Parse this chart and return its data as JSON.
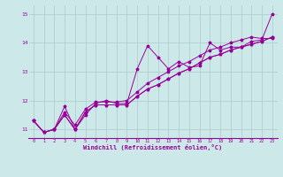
{
  "title": "",
  "xlabel": "Windchill (Refroidissement éolien,°C)",
  "ylabel": "",
  "xlim": [
    -0.5,
    23.5
  ],
  "ylim": [
    10.7,
    15.3
  ],
  "yticks": [
    11,
    12,
    13,
    14,
    15
  ],
  "xticks": [
    0,
    1,
    2,
    3,
    4,
    5,
    6,
    7,
    8,
    9,
    10,
    11,
    12,
    13,
    14,
    15,
    16,
    17,
    18,
    19,
    20,
    21,
    22,
    23
  ],
  "background_color": "#cce8e8",
  "grid_color": "#aacccc",
  "line_color": "#990099",
  "marker": "*",
  "series": [
    [
      11.3,
      10.9,
      11.0,
      11.8,
      11.0,
      11.5,
      11.9,
      12.0,
      11.9,
      11.9,
      13.1,
      13.9,
      13.5,
      13.1,
      13.35,
      13.15,
      13.2,
      14.0,
      13.75,
      13.85,
      13.85,
      14.05,
      14.1,
      15.0
    ],
    [
      11.3,
      10.9,
      11.0,
      11.5,
      11.0,
      11.6,
      11.85,
      11.85,
      11.85,
      11.85,
      12.15,
      12.4,
      12.55,
      12.75,
      12.95,
      13.1,
      13.3,
      13.5,
      13.6,
      13.75,
      13.85,
      13.95,
      14.05,
      14.2
    ],
    [
      11.3,
      10.9,
      11.0,
      11.5,
      11.0,
      11.6,
      11.85,
      11.85,
      11.85,
      11.85,
      12.15,
      12.4,
      12.55,
      12.75,
      12.95,
      13.1,
      13.3,
      13.5,
      13.6,
      13.75,
      13.85,
      13.95,
      14.05,
      14.2
    ],
    [
      11.3,
      10.9,
      11.0,
      11.6,
      11.15,
      11.7,
      11.95,
      11.95,
      11.95,
      12.0,
      12.3,
      12.6,
      12.8,
      13.0,
      13.2,
      13.35,
      13.55,
      13.75,
      13.85,
      14.0,
      14.1,
      14.2,
      14.15,
      14.15
    ]
  ]
}
